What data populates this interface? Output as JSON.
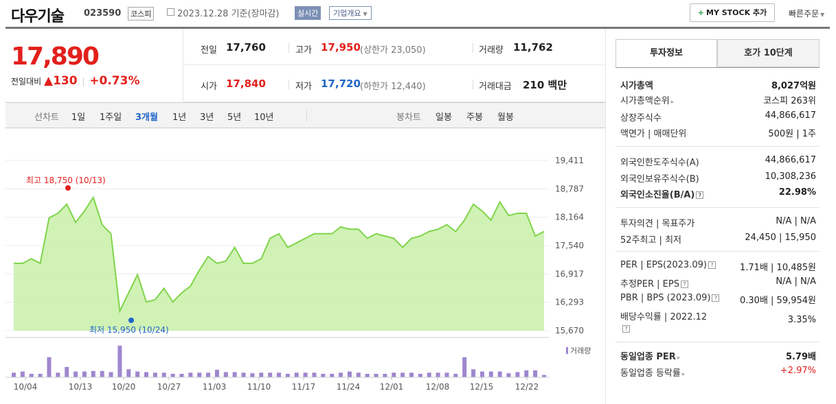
{
  "header": {
    "name": "다우기술",
    "code": "023590",
    "market": "코스피",
    "date": "2023.12.28 기준(장마감)",
    "realtime": "실시간",
    "corp_info": "기업개요",
    "mystock": "MY STOCK 추가",
    "quick": "빠른주문"
  },
  "price": {
    "current": "17,890",
    "diff_label": "전일대비",
    "diff_arrow": "▲",
    "diff_value": "130",
    "diff_pct": "+0.73%"
  },
  "stats": {
    "prev_label": "전일",
    "prev": "17,760",
    "high_label": "고가",
    "high": "17,950",
    "upper": "(상한가 23,050)",
    "volume_label": "거래량",
    "volume": "11,762",
    "open_label": "시가",
    "open": "17,840",
    "low_label": "저가",
    "low": "17,720",
    "lower": "(하한가 12,440)",
    "amount_label": "거래대금",
    "amount": "210 백만"
  },
  "period_bar": {
    "line_label": "선차트",
    "periods": [
      "1일",
      "1주일",
      "3개월",
      "1년",
      "3년",
      "5년",
      "10년"
    ],
    "active": "3개월",
    "candle_label": "봉차트",
    "candles": [
      "일봉",
      "주봉",
      "월봉"
    ]
  },
  "chart_data": {
    "type": "area",
    "y_ticks": [
      "19,411",
      "18,787",
      "18,164",
      "17,540",
      "16,917",
      "16,293",
      "15,670"
    ],
    "ylim": [
      15670,
      19411
    ],
    "x_ticks": [
      "10/04",
      "10/13",
      "10/20",
      "10/27",
      "11/03",
      "11/10",
      "11/17",
      "11/24",
      "12/01",
      "12/08",
      "12/15",
      "12/22"
    ],
    "values": [
      17150,
      17150,
      17250,
      17150,
      18150,
      18250,
      18450,
      18050,
      18300,
      18600,
      18000,
      17800,
      16100,
      16500,
      16900,
      16300,
      16350,
      16600,
      16300,
      16500,
      16650,
      17000,
      17300,
      17150,
      17200,
      17500,
      17150,
      17150,
      17250,
      17700,
      17800,
      17500,
      17600,
      17700,
      17800,
      17800,
      17800,
      17950,
      17900,
      17900,
      17700,
      17800,
      17750,
      17700,
      17500,
      17700,
      17750,
      17850,
      17900,
      18000,
      17850,
      18100,
      18450,
      18300,
      18100,
      18500,
      18200,
      18250,
      18250,
      17750,
      17850
    ],
    "volumes": [
      8,
      10,
      6,
      6,
      35,
      8,
      18,
      10,
      10,
      11,
      11,
      9,
      55,
      14,
      10,
      9,
      8,
      8,
      6,
      6,
      8,
      8,
      8,
      13,
      9,
      9,
      8,
      7,
      8,
      8,
      8,
      6,
      8,
      8,
      8,
      6,
      6,
      8,
      10,
      8,
      6,
      6,
      6,
      8,
      8,
      8,
      6,
      8,
      8,
      8,
      6,
      35,
      14,
      10,
      10,
      10,
      7,
      9,
      12,
      12,
      4
    ],
    "max_label": "최고 18,750 (10/13)",
    "min_label": "최저 15,950 (10/24)",
    "volume_legend": "거래량",
    "line_color": "#7fd44a",
    "fill_color": "#c8f0a8",
    "bar_color": "#9e87cf"
  },
  "tabs": {
    "invest": "투자정보",
    "hoga": "호가 10단계"
  },
  "info": {
    "mcap_label": "시가총액",
    "mcap": "8,027억원",
    "mrank_label": "시가총액순위",
    "mrank": "코스피 263위",
    "shares_label": "상장주식수",
    "shares": "44,866,617",
    "face_label": "액면가 | 매매단위",
    "face": "500원 | 1주",
    "flimit_label": "외국인한도주식수(A)",
    "flimit": "44,866,617",
    "fhold_label": "외국인보유주식수(B)",
    "fhold": "10,308,236",
    "fratio_label": "외국인소진율(B/A)",
    "fratio": "22.98%",
    "opinion_label": "투자의견 | 목표주가",
    "opinion": "N/A | N/A",
    "w52_label": "52주최고 | 최저",
    "w52": "24,450 | 15,950",
    "per_label": "PER | EPS(2023.09)",
    "per": "1.71배 | 10,485원",
    "eper_label": "추정PER | EPS",
    "eper": "N/A | N/A",
    "pbr_label": "PBR | BPS (2023.09)",
    "pbr": "0.30배 | 59,954원",
    "div_label": "배당수익률 | 2022.12",
    "div": "3.35%",
    "ind_per_label": "동일업종 PER",
    "ind_per": "5.79배",
    "ind_chg_label": "동일업종 등락률",
    "ind_chg": "+2.97%"
  }
}
